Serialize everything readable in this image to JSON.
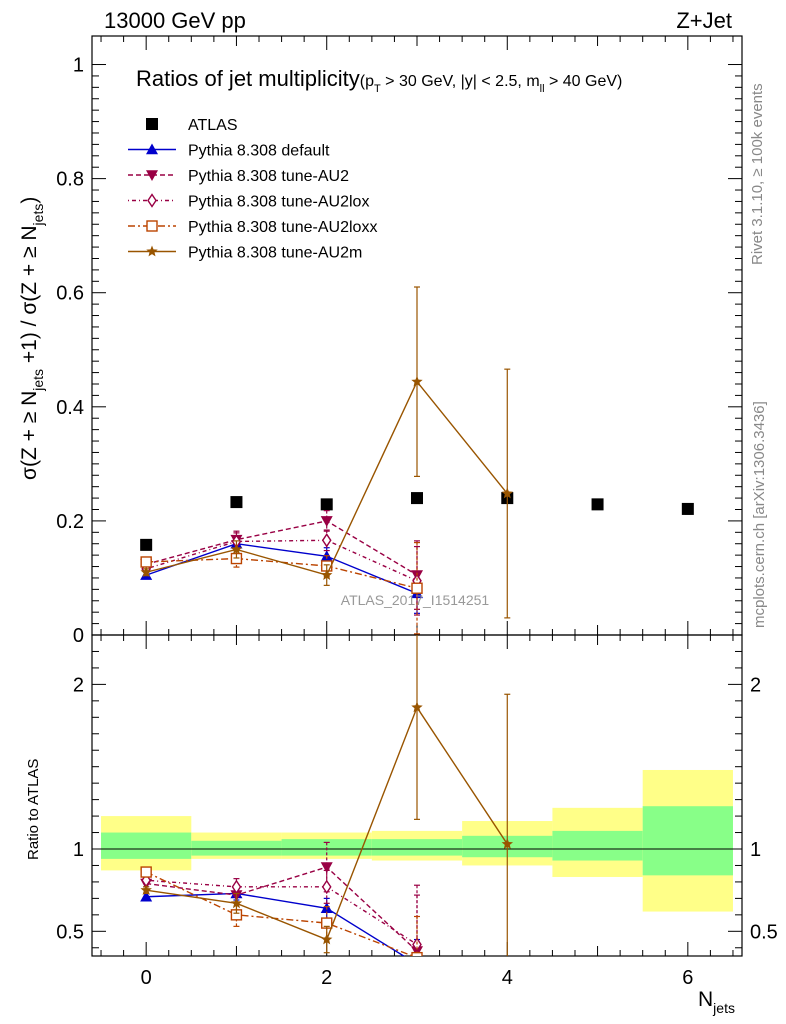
{
  "header": {
    "left": "13000 GeV pp",
    "right": "Z+Jet"
  },
  "side_labels": {
    "rivet": "Rivet 3.1.10, ≥ 100k events",
    "mcplots": "mcplots.cern.ch [arXiv:1306.3436]"
  },
  "watermark": "ATLAS_2017_I1514251",
  "colors": {
    "atlas": "#000000",
    "default": "#0000cc",
    "au2": "#990044",
    "au2lox": "#990044",
    "au2loxx": "#bb4400",
    "au2m": "#995500",
    "band_inner": "#88ff88",
    "band_outer": "#ffff88"
  },
  "chart_data": [
    {
      "type": "scatter",
      "panel": "main",
      "title": "Ratios of jet multiplicity",
      "title_cuts": {
        "pre": "(p",
        "pt_sub": "T",
        "mid": " > 30 GeV, |y| < 2.5, m",
        "m_sub": "ll",
        "post": " > 40 GeV)"
      },
      "ylabel": "σ(Z + ≥ N_jets +1) / σ(Z + ≥ N_jets)",
      "xlim": [
        -0.6,
        6.6
      ],
      "ylim": [
        0,
        1.05
      ],
      "yticks": [
        "0",
        "0.2",
        "0.4",
        "0.6",
        "0.8",
        "1"
      ],
      "legend_position": "top-left",
      "series": [
        {
          "key": "atlas",
          "name": "ATLAS",
          "marker": "square-filled",
          "x": [
            0,
            1,
            2,
            3,
            4,
            5,
            6
          ],
          "y": [
            0.158,
            0.233,
            0.229,
            0.24,
            0.24,
            0.229,
            0.221
          ],
          "err": [
            0.004,
            0.004,
            0.004,
            0.005,
            0.007,
            0.007,
            0.009
          ]
        },
        {
          "key": "default",
          "name": "Pythia 8.308 default",
          "marker": "triangle-up-filled",
          "dash": "",
          "x": [
            0,
            1,
            2,
            3
          ],
          "y": [
            0.105,
            0.16,
            0.138,
            0.073
          ],
          "err": [
            0.006,
            0.01,
            0.015,
            0.035
          ]
        },
        {
          "key": "au2",
          "name": "Pythia 8.308 tune-AU2",
          "marker": "triangle-down-filled",
          "dash": "5,3",
          "x": [
            0,
            1,
            2,
            3
          ],
          "y": [
            0.124,
            0.167,
            0.2,
            0.105
          ],
          "err": [
            0.006,
            0.015,
            0.018,
            0.06
          ]
        },
        {
          "key": "au2lox",
          "name": "Pythia 8.308 tune-AU2lox",
          "marker": "diamond-open",
          "dash": "1,3,4,3",
          "x": [
            0,
            1,
            2,
            3
          ],
          "y": [
            0.116,
            0.164,
            0.166,
            0.095
          ],
          "err": [
            0.006,
            0.015,
            0.018,
            0.06
          ]
        },
        {
          "key": "au2loxx",
          "name": "Pythia 8.308 tune-AU2loxx",
          "marker": "square-open",
          "dash": "7,3,2,3",
          "x": [
            0,
            1,
            2,
            3
          ],
          "y": [
            0.128,
            0.134,
            0.121,
            0.082
          ],
          "err": [
            0.006,
            0.015,
            0.018,
            0.08
          ]
        },
        {
          "key": "au2m",
          "name": "Pythia 8.308 tune-AU2m",
          "marker": "star",
          "dash": "",
          "x": [
            0,
            1,
            2,
            3,
            4
          ],
          "y": [
            0.11,
            0.15,
            0.105,
            0.444,
            0.248
          ],
          "err": [
            0.006,
            0.015,
            0.018,
            0.166,
            0.218
          ]
        }
      ]
    },
    {
      "type": "scatter",
      "panel": "ratio",
      "ylabel": "Ratio to ATLAS",
      "xlabel": "N_jets",
      "xlim": [
        -0.6,
        6.6
      ],
      "ylim": [
        0.35,
        2.3
      ],
      "yticks": [
        "0.5",
        "1",
        "2"
      ],
      "xticks": [
        "0",
        "2",
        "4",
        "6"
      ],
      "reference_line": 1,
      "bands": {
        "x_edges": [
          -0.5,
          0.5,
          1.5,
          2.5,
          3.5,
          4.5,
          5.5,
          6.5
        ],
        "inner_lo": [
          0.94,
          0.96,
          0.96,
          0.96,
          0.95,
          0.93,
          0.84
        ],
        "inner_hi": [
          1.1,
          1.05,
          1.06,
          1.06,
          1.08,
          1.11,
          1.26
        ],
        "outer_lo": [
          0.87,
          0.94,
          0.94,
          0.93,
          0.9,
          0.83,
          0.62
        ],
        "outer_hi": [
          1.2,
          1.1,
          1.1,
          1.11,
          1.17,
          1.25,
          1.48
        ]
      },
      "series": [
        {
          "key": "default",
          "x": [
            0,
            1,
            2,
            3
          ],
          "y": [
            0.71,
            0.73,
            0.64,
            0.3
          ],
          "err": [
            0.02,
            0.04,
            0.06,
            0.15
          ]
        },
        {
          "key": "au2",
          "x": [
            0,
            1,
            2,
            3
          ],
          "y": [
            0.79,
            0.72,
            0.89,
            0.38
          ],
          "err": [
            0.02,
            0.05,
            0.15,
            0.4
          ]
        },
        {
          "key": "au2lox",
          "x": [
            0,
            1,
            2,
            3
          ],
          "y": [
            0.81,
            0.77,
            0.77,
            0.42
          ],
          "err": [
            0.02,
            0.05,
            0.1,
            0.3
          ]
        },
        {
          "key": "au2loxx",
          "x": [
            0,
            1,
            2,
            3
          ],
          "y": [
            0.86,
            0.6,
            0.55,
            0.34
          ],
          "err": [
            0.02,
            0.07,
            0.1,
            0.25
          ]
        },
        {
          "key": "au2m",
          "x": [
            0,
            1,
            2,
            3,
            4
          ],
          "y": [
            0.75,
            0.67,
            0.45,
            1.86,
            1.03
          ],
          "err": [
            0.02,
            0.06,
            0.08,
            0.68,
            0.91
          ]
        }
      ]
    }
  ]
}
